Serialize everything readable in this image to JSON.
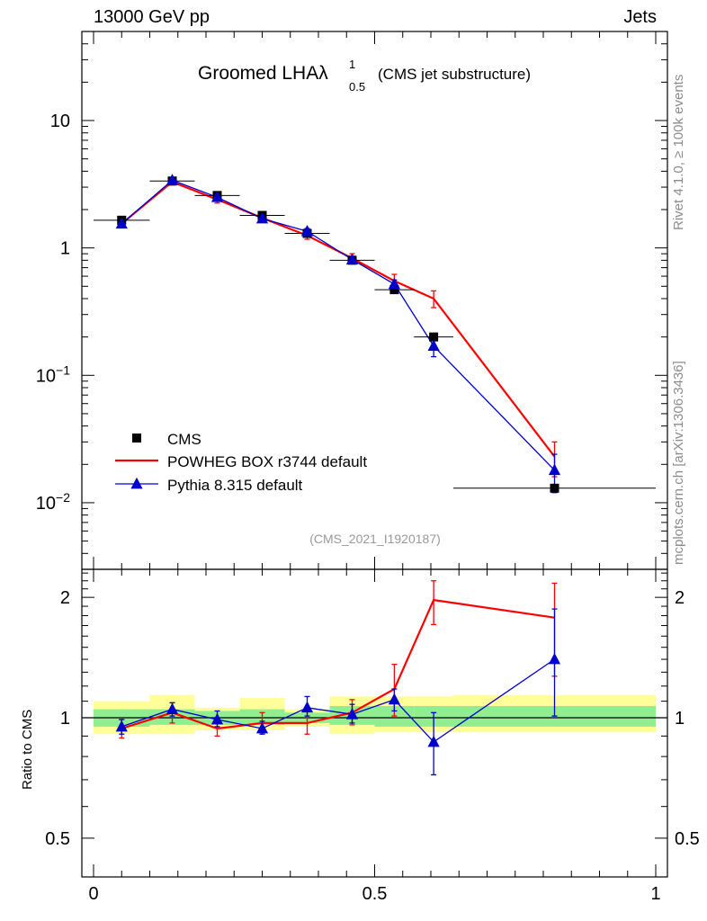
{
  "header": {
    "energy": "13000 GeV pp",
    "category": "Jets"
  },
  "side": {
    "rivet": "Rivet 4.1.0, ≥ 100k events",
    "mcplots": "mcplots.cern.ch [arXiv:1306.3436]"
  },
  "analysis_id": "(CMS_2021_I1920187)",
  "ratio_axis_label": "Ratio to CMS",
  "colors": {
    "data": "#000000",
    "powheg": "#ff0000",
    "pythia": "#0000cc",
    "band_inner": "#90ee90",
    "band_outer": "#ffff99"
  },
  "chart_data": [
    {
      "type": "line",
      "panel": "main",
      "title": "Groomed LHA",
      "title_suffix": "(CMS jet substructure)",
      "lambda_sup": "1",
      "lambda_sub": "0.5",
      "xlim": [
        0,
        1
      ],
      "ylim": [
        0.003,
        50
      ],
      "yscale": "log",
      "yticks": [
        {
          "value": 10,
          "base": "10",
          "exp": ""
        },
        {
          "value": 1,
          "base": "1",
          "exp": ""
        },
        {
          "value": 0.1,
          "base": "10",
          "exp": "−1"
        },
        {
          "value": 0.01,
          "base": "10",
          "exp": "−2"
        }
      ],
      "legend": {
        "placement": "bottom-left",
        "entries": [
          "CMS",
          "POWHEG BOX r3744 default",
          "Pythia 8.315 default"
        ]
      },
      "series": [
        {
          "name": "CMS",
          "style": "square",
          "x": [
            0.05,
            0.14,
            0.22,
            0.3,
            0.38,
            0.46,
            0.535,
            0.605,
            0.82
          ],
          "y": [
            1.65,
            3.35,
            2.58,
            1.8,
            1.3,
            0.8,
            0.47,
            0.2,
            0.013
          ],
          "xerr": [
            0.05,
            0.04,
            0.04,
            0.04,
            0.04,
            0.04,
            0.035,
            0.035,
            0.18
          ]
        },
        {
          "name": "POWHEG BOX r3744 default",
          "style": "line",
          "x": [
            0.05,
            0.14,
            0.22,
            0.3,
            0.38,
            0.46,
            0.535,
            0.605,
            0.82
          ],
          "y": [
            1.55,
            3.3,
            2.4,
            1.72,
            1.25,
            0.83,
            0.55,
            0.4,
            0.023
          ],
          "yerr": [
            0.1,
            0.18,
            0.15,
            0.09,
            0.08,
            0.07,
            0.07,
            0.06,
            0.007
          ]
        },
        {
          "name": "Pythia 8.315 default",
          "style": "triangle",
          "x": [
            0.05,
            0.14,
            0.22,
            0.3,
            0.38,
            0.46,
            0.535,
            0.605,
            0.82
          ],
          "y": [
            1.55,
            3.4,
            2.5,
            1.7,
            1.35,
            0.81,
            0.52,
            0.17,
            0.018
          ],
          "yerr": [
            0.07,
            0.12,
            0.1,
            0.08,
            0.07,
            0.05,
            0.04,
            0.03,
            0.006
          ]
        }
      ]
    },
    {
      "type": "line",
      "panel": "ratio",
      "ylabel": "Ratio to CMS",
      "xlim": [
        0,
        1
      ],
      "ylim": [
        0.4,
        2.35
      ],
      "yscale": "log",
      "xticks": [
        {
          "value": 0,
          "label": "0"
        },
        {
          "value": 0.5,
          "label": "0.5"
        },
        {
          "value": 1,
          "label": "1"
        }
      ],
      "yticks": [
        {
          "value": 2,
          "label": "2"
        },
        {
          "value": 1,
          "label": "1"
        },
        {
          "value": 0.5,
          "label": "0.5"
        }
      ],
      "bands": [
        {
          "xlo": 0.0,
          "xhi": 0.1,
          "inner": [
            0.95,
            1.05
          ],
          "outer": [
            0.91,
            1.1
          ]
        },
        {
          "xlo": 0.1,
          "xhi": 0.18,
          "inner": [
            0.96,
            1.05
          ],
          "outer": [
            0.91,
            1.14
          ]
        },
        {
          "xlo": 0.18,
          "xhi": 0.26,
          "inner": [
            0.96,
            1.04
          ],
          "outer": [
            0.93,
            1.06
          ]
        },
        {
          "xlo": 0.26,
          "xhi": 0.34,
          "inner": [
            0.96,
            1.05
          ],
          "outer": [
            0.93,
            1.12
          ]
        },
        {
          "xlo": 0.34,
          "xhi": 0.42,
          "inner": [
            0.97,
            1.03
          ],
          "outer": [
            0.95,
            1.05
          ]
        },
        {
          "xlo": 0.42,
          "xhi": 0.5,
          "inner": [
            0.96,
            1.07
          ],
          "outer": [
            0.91,
            1.13
          ]
        },
        {
          "xlo": 0.5,
          "xhi": 0.57,
          "inner": [
            0.95,
            1.07
          ],
          "outer": [
            0.92,
            1.13
          ]
        },
        {
          "xlo": 0.57,
          "xhi": 0.64,
          "inner": [
            0.95,
            1.07
          ],
          "outer": [
            0.92,
            1.13
          ]
        },
        {
          "xlo": 0.64,
          "xhi": 1.0,
          "inner": [
            0.95,
            1.07
          ],
          "outer": [
            0.92,
            1.14
          ]
        }
      ],
      "series": [
        {
          "name": "POWHEG BOX r3744 default",
          "x": [
            0.05,
            0.14,
            0.22,
            0.3,
            0.38,
            0.46,
            0.535,
            0.605,
            0.82
          ],
          "y": [
            0.94,
            1.03,
            0.94,
            0.97,
            0.97,
            1.03,
            1.18,
            1.97,
            1.78
          ],
          "lo": [
            0.89,
            0.97,
            0.9,
            0.92,
            0.91,
            0.96,
            1.01,
            1.71,
            1.27
          ],
          "hi": [
            0.99,
            1.09,
            0.99,
            1.03,
            1.04,
            1.11,
            1.36,
            2.2,
            2.17
          ]
        },
        {
          "name": "Pythia 8.315 default",
          "x": [
            0.05,
            0.14,
            0.22,
            0.3,
            0.38,
            0.46,
            0.535,
            0.605,
            0.82
          ],
          "y": [
            0.95,
            1.05,
            0.99,
            0.94,
            1.06,
            1.02,
            1.11,
            0.87,
            1.4
          ],
          "lo": [
            0.91,
            1.01,
            0.95,
            0.91,
            1.01,
            0.97,
            1.04,
            0.72,
            1.01
          ],
          "hi": [
            0.99,
            1.09,
            1.04,
            0.98,
            1.13,
            1.08,
            1.18,
            1.03,
            1.87
          ]
        }
      ]
    }
  ]
}
